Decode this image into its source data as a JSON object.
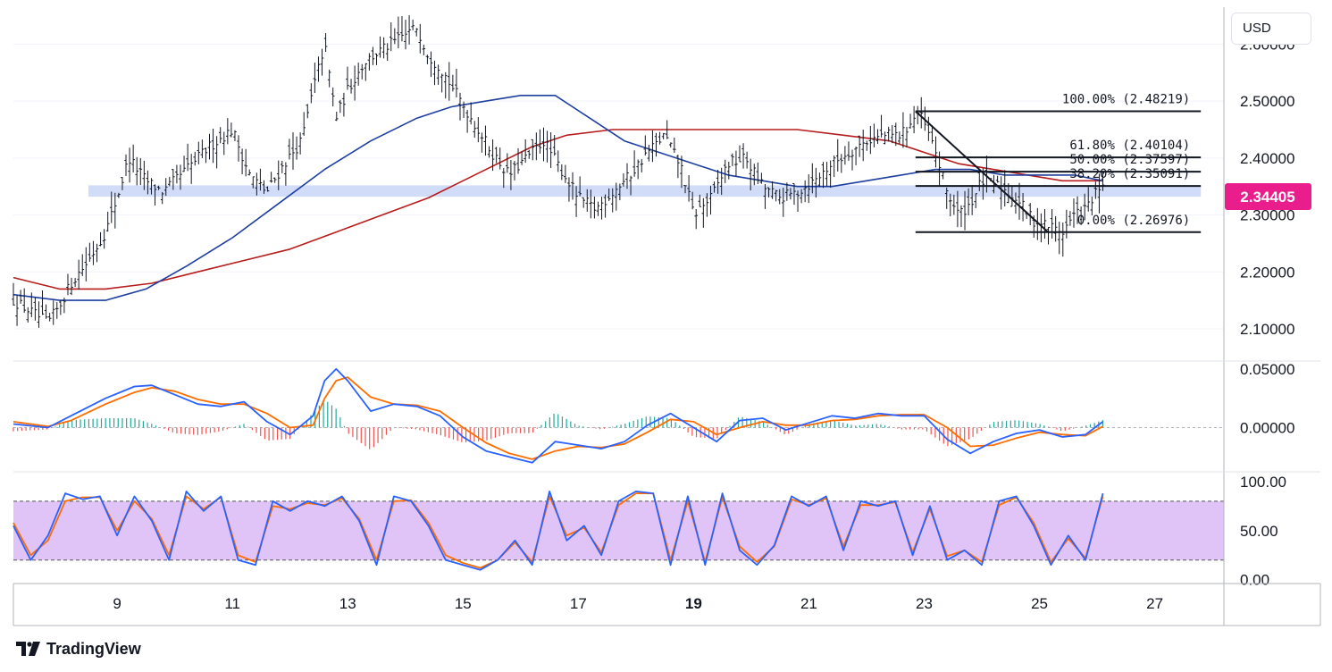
{
  "currency": "USD",
  "brand": {
    "name": "TradingView",
    "logo_icon": "tradingview-logo-icon"
  },
  "colors": {
    "ema_fast": "#1e3fa0",
    "ema_slow": "#b71c1c",
    "support_zone": "#c9d6f7",
    "price_label_bg": "#e91e8c",
    "macd_line": "#2962ff",
    "signal_line": "#ff6d00",
    "hist_pos": "#26a69a",
    "hist_neg": "#ef5350",
    "stoch_band": "#e1c4f7",
    "stoch_k": "#2962ff",
    "stoch_d": "#ff6d00",
    "candle": "#131722",
    "fib_line": "#131722"
  },
  "chart_data": [
    {
      "panel": "price",
      "type": "line",
      "x_ticks": [
        "9",
        "11",
        "13",
        "15",
        "17",
        "19",
        "21",
        "23",
        "25",
        "27"
      ],
      "x_tick_values": [
        9,
        11,
        13,
        15,
        17,
        19,
        21,
        23,
        25,
        27
      ],
      "xlim": [
        7.2,
        28.2
      ],
      "y_ticks": [
        "2.60000",
        "2.50000",
        "2.40000",
        "2.30000",
        "2.20000",
        "2.10000"
      ],
      "y_tick_values": [
        2.6,
        2.5,
        2.4,
        2.3,
        2.2,
        2.1
      ],
      "ylim": [
        2.045,
        2.665
      ],
      "current_price": "2.34405",
      "current_price_value": 2.34405,
      "support_zone": {
        "from_x": 8.5,
        "to_x": 27.8,
        "low": 2.332,
        "high": 2.352
      },
      "price_series": {
        "x": [
          7.2,
          7.5,
          7.8,
          8.0,
          8.2,
          8.5,
          8.8,
          9.0,
          9.2,
          9.5,
          9.8,
          10.2,
          10.6,
          11.0,
          11.3,
          11.6,
          11.9,
          12.2,
          12.4,
          12.6,
          12.8,
          13.0,
          13.3,
          13.6,
          13.9,
          14.2,
          14.4,
          14.6,
          14.9,
          15.2,
          15.5,
          15.8,
          16.1,
          16.4,
          16.7,
          17.0,
          17.3,
          17.6,
          17.9,
          18.2,
          18.5,
          18.8,
          19.0,
          19.3,
          19.6,
          19.9,
          20.2,
          20.5,
          20.8,
          21.1,
          21.4,
          21.7,
          22.0,
          22.3,
          22.6,
          22.9,
          23.0,
          23.2,
          23.4,
          23.6,
          23.8,
          24.0,
          24.3,
          24.6,
          24.9,
          25.2,
          25.4,
          25.6,
          25.8,
          26.0,
          26.1
        ],
        "y": [
          2.15,
          2.13,
          2.11,
          2.14,
          2.18,
          2.22,
          2.27,
          2.33,
          2.4,
          2.36,
          2.34,
          2.38,
          2.42,
          2.45,
          2.37,
          2.34,
          2.39,
          2.43,
          2.52,
          2.6,
          2.47,
          2.52,
          2.57,
          2.59,
          2.61,
          2.63,
          2.58,
          2.56,
          2.51,
          2.46,
          2.41,
          2.37,
          2.4,
          2.43,
          2.38,
          2.33,
          2.31,
          2.34,
          2.37,
          2.41,
          2.44,
          2.38,
          2.3,
          2.33,
          2.39,
          2.4,
          2.35,
          2.33,
          2.34,
          2.36,
          2.39,
          2.41,
          2.43,
          2.44,
          2.44,
          2.48,
          2.46,
          2.41,
          2.34,
          2.3,
          2.32,
          2.36,
          2.35,
          2.33,
          2.29,
          2.28,
          2.27,
          2.3,
          2.31,
          2.34,
          2.344
        ]
      },
      "ema_fast": {
        "x": [
          7.2,
          8.0,
          8.8,
          9.5,
          10.2,
          11.0,
          11.8,
          12.6,
          13.4,
          14.2,
          14.8,
          15.4,
          16.0,
          16.6,
          17.2,
          17.8,
          18.4,
          19.0,
          19.6,
          20.2,
          20.8,
          21.4,
          22.0,
          22.6,
          23.2,
          23.8,
          24.4,
          25.0,
          25.6,
          26.1
        ],
        "y": [
          2.16,
          2.15,
          2.15,
          2.17,
          2.21,
          2.26,
          2.32,
          2.38,
          2.43,
          2.47,
          2.49,
          2.5,
          2.51,
          2.51,
          2.47,
          2.43,
          2.41,
          2.39,
          2.37,
          2.36,
          2.35,
          2.35,
          2.36,
          2.37,
          2.38,
          2.38,
          2.37,
          2.37,
          2.37,
          2.36
        ]
      },
      "ema_slow": {
        "x": [
          7.2,
          8.0,
          8.8,
          9.6,
          10.4,
          11.2,
          12.0,
          12.8,
          13.6,
          14.4,
          15.0,
          15.6,
          16.2,
          16.8,
          17.6,
          18.4,
          19.2,
          20.0,
          20.8,
          21.6,
          22.4,
          23.0,
          23.6,
          24.2,
          24.8,
          25.4,
          26.1
        ],
        "y": [
          2.19,
          2.17,
          2.17,
          2.18,
          2.2,
          2.22,
          2.24,
          2.27,
          2.3,
          2.33,
          2.36,
          2.39,
          2.42,
          2.44,
          2.45,
          2.45,
          2.45,
          2.45,
          2.45,
          2.44,
          2.43,
          2.41,
          2.39,
          2.38,
          2.37,
          2.36,
          2.36
        ]
      },
      "fibonacci": {
        "from_x": 22.85,
        "to_x": 27.8,
        "levels": [
          {
            "label": "100.00% (2.48219)",
            "value": 2.48219
          },
          {
            "label": "61.80% (2.40104)",
            "value": 2.40104
          },
          {
            "label": "50.00% (2.37597)",
            "value": 2.37597
          },
          {
            "label": "38.20% (2.35091)",
            "value": 2.35091
          },
          {
            "label": "0.00% (2.26976)",
            "value": 2.26976
          }
        ],
        "trendline": {
          "x": [
            22.85,
            25.15
          ],
          "y": [
            2.48219,
            2.26976
          ]
        }
      }
    },
    {
      "panel": "macd",
      "type": "line",
      "y_ticks": [
        "0.05000",
        "0.00000"
      ],
      "y_tick_values": [
        0.05,
        0
      ],
      "ylim": [
        -0.037,
        0.056
      ],
      "xlim": [
        7.2,
        28.2
      ],
      "zero_line": 0,
      "series": [
        {
          "x": [
            7.2,
            7.8,
            8.2,
            8.8,
            9.3,
            9.6,
            10.0,
            10.4,
            10.8,
            11.2,
            11.6,
            12.0,
            12.4,
            12.6,
            12.8,
            13.0,
            13.4,
            13.8,
            14.2,
            14.6,
            15.0,
            15.4,
            15.8,
            16.2,
            16.6,
            17.0,
            17.4,
            17.8,
            18.2,
            18.6,
            19.0,
            19.4,
            19.8,
            20.2,
            20.6,
            21.0,
            21.4,
            21.8,
            22.2,
            22.6,
            23.0,
            23.4,
            23.8,
            24.2,
            24.6,
            25.0,
            25.4,
            25.8,
            26.1
          ],
          "y": [
            0.003,
            0.0,
            0.01,
            0.025,
            0.035,
            0.036,
            0.028,
            0.02,
            0.018,
            0.022,
            0.005,
            -0.006,
            0.01,
            0.04,
            0.05,
            0.04,
            0.014,
            0.02,
            0.018,
            0.01,
            -0.008,
            -0.02,
            -0.025,
            -0.03,
            -0.012,
            -0.015,
            -0.018,
            -0.012,
            0.002,
            0.012,
            0.0,
            -0.012,
            0.006,
            0.008,
            -0.002,
            0.004,
            0.01,
            0.008,
            0.012,
            0.01,
            0.01,
            -0.01,
            -0.022,
            -0.012,
            -0.005,
            -0.002,
            -0.008,
            -0.006,
            0.005
          ],
          "role": "macd"
        },
        {
          "x": [
            7.2,
            7.8,
            8.2,
            8.8,
            9.3,
            9.6,
            10.0,
            10.4,
            10.8,
            11.2,
            11.6,
            12.0,
            12.4,
            12.6,
            12.8,
            13.0,
            13.4,
            13.8,
            14.2,
            14.6,
            15.0,
            15.4,
            15.8,
            16.2,
            16.6,
            17.0,
            17.4,
            17.8,
            18.2,
            18.6,
            19.0,
            19.4,
            19.8,
            20.2,
            20.6,
            21.0,
            21.4,
            21.8,
            22.2,
            22.6,
            23.0,
            23.4,
            23.8,
            24.2,
            24.6,
            25.0,
            25.4,
            25.8,
            26.1
          ],
          "y": [
            0.005,
            0.001,
            0.006,
            0.02,
            0.03,
            0.034,
            0.031,
            0.024,
            0.02,
            0.02,
            0.012,
            0.0,
            0.002,
            0.025,
            0.04,
            0.043,
            0.026,
            0.02,
            0.019,
            0.014,
            0.0,
            -0.013,
            -0.022,
            -0.027,
            -0.02,
            -0.016,
            -0.017,
            -0.014,
            -0.004,
            0.007,
            0.005,
            -0.006,
            0.0,
            0.005,
            0.002,
            0.002,
            0.006,
            0.007,
            0.01,
            0.011,
            0.011,
            0.0,
            -0.016,
            -0.015,
            -0.009,
            -0.004,
            -0.006,
            -0.007,
            0.001
          ],
          "role": "signal"
        }
      ]
    },
    {
      "panel": "stochastic",
      "type": "line",
      "y_ticks": [
        "100.00",
        "50.00",
        "0.00"
      ],
      "y_tick_values": [
        100,
        50,
        0
      ],
      "ylim": [
        -3,
        109
      ],
      "xlim": [
        7.2,
        28.2
      ],
      "band": [
        20,
        80
      ],
      "series": [
        {
          "x": [
            7.2,
            7.5,
            7.8,
            8.1,
            8.4,
            8.7,
            9.0,
            9.3,
            9.6,
            9.9,
            10.2,
            10.5,
            10.8,
            11.1,
            11.4,
            11.7,
            12.0,
            12.3,
            12.6,
            12.9,
            13.2,
            13.5,
            13.8,
            14.1,
            14.4,
            14.7,
            15.0,
            15.3,
            15.6,
            15.9,
            16.2,
            16.5,
            16.8,
            17.1,
            17.4,
            17.7,
            18.0,
            18.3,
            18.6,
            18.9,
            19.2,
            19.5,
            19.8,
            20.1,
            20.4,
            20.7,
            21.0,
            21.3,
            21.6,
            21.9,
            22.2,
            22.5,
            22.8,
            23.1,
            23.4,
            23.7,
            24.0,
            24.3,
            24.6,
            24.9,
            25.2,
            25.5,
            25.8,
            26.1
          ],
          "y": [
            55,
            20,
            45,
            88,
            82,
            85,
            45,
            85,
            60,
            20,
            90,
            70,
            85,
            20,
            15,
            80,
            70,
            80,
            75,
            85,
            60,
            15,
            85,
            80,
            55,
            20,
            15,
            10,
            20,
            40,
            15,
            90,
            40,
            55,
            25,
            80,
            90,
            88,
            15,
            85,
            15,
            88,
            30,
            15,
            35,
            85,
            75,
            85,
            30,
            80,
            75,
            80,
            25,
            75,
            20,
            30,
            15,
            80,
            85,
            55,
            15,
            45,
            20,
            88
          ],
          "role": "%K"
        },
        {
          "x": [
            7.2,
            7.5,
            7.8,
            8.1,
            8.4,
            8.7,
            9.0,
            9.3,
            9.6,
            9.9,
            10.2,
            10.5,
            10.8,
            11.1,
            11.4,
            11.7,
            12.0,
            12.3,
            12.6,
            12.9,
            13.2,
            13.5,
            13.8,
            14.1,
            14.4,
            14.7,
            15.0,
            15.3,
            15.6,
            15.9,
            16.2,
            16.5,
            16.8,
            17.1,
            17.4,
            17.7,
            18.0,
            18.3,
            18.6,
            18.9,
            19.2,
            19.5,
            19.8,
            20.1,
            20.4,
            20.7,
            21.0,
            21.3,
            21.6,
            21.9,
            22.2,
            22.5,
            22.8,
            23.1,
            23.4,
            23.7,
            24.0,
            24.3,
            24.6,
            24.9,
            25.2,
            25.5,
            25.8,
            26.1
          ],
          "y": [
            58,
            25,
            40,
            80,
            84,
            84,
            50,
            80,
            62,
            25,
            85,
            72,
            84,
            25,
            18,
            75,
            72,
            78,
            76,
            83,
            62,
            20,
            80,
            81,
            58,
            25,
            17,
            12,
            20,
            38,
            18,
            85,
            45,
            53,
            28,
            76,
            88,
            88,
            20,
            80,
            18,
            84,
            34,
            18,
            34,
            82,
            76,
            83,
            34,
            76,
            76,
            79,
            28,
            72,
            24,
            30,
            18,
            76,
            84,
            58,
            18,
            42,
            22,
            85
          ],
          "role": "%D"
        }
      ]
    }
  ]
}
